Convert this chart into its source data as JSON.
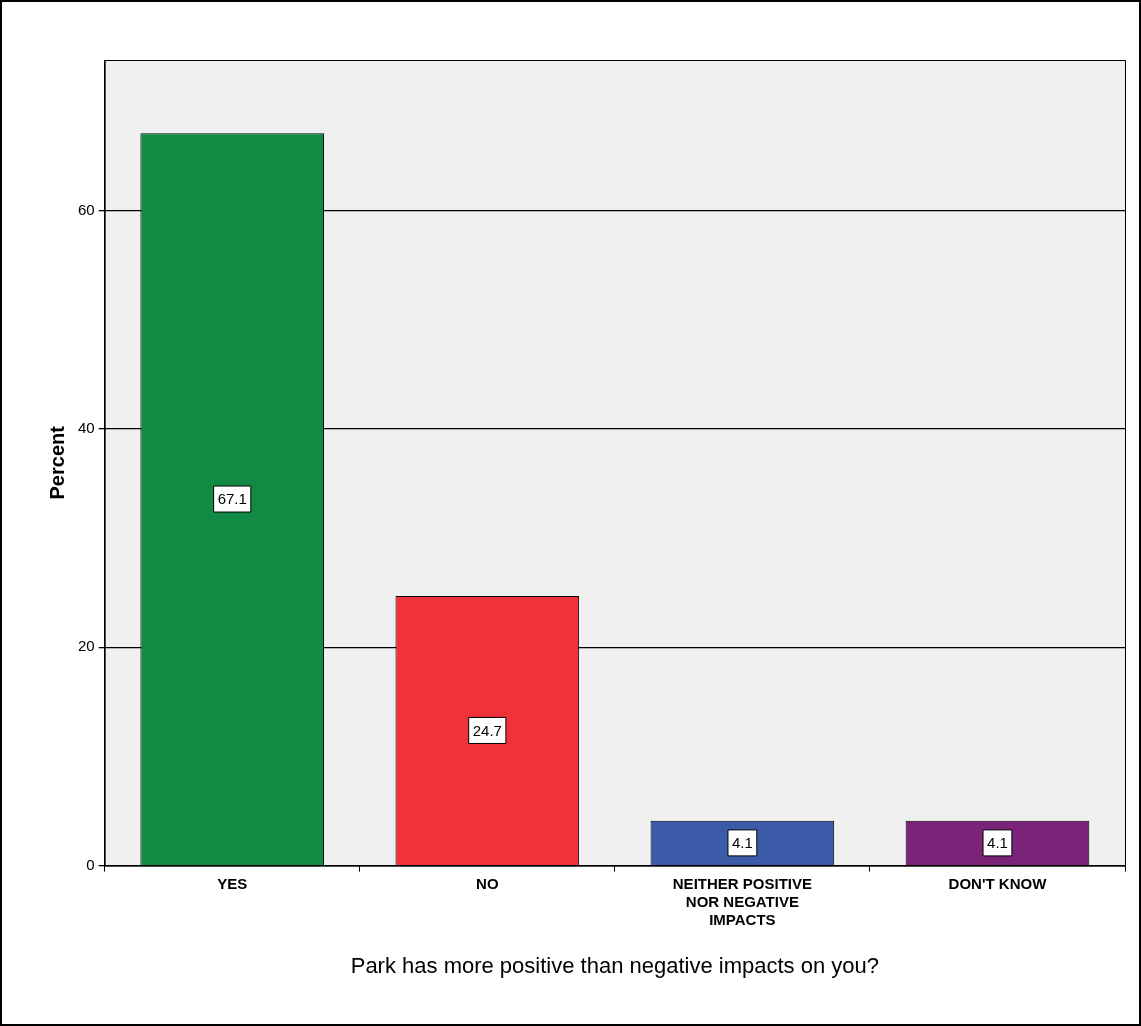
{
  "chart_data": {
    "type": "bar",
    "xlabel": "Park has more positive than negative impacts on you?",
    "ylabel": "Percent",
    "categories": [
      "YES",
      "NO",
      "NEITHER POSITIVE NOR NEGATIVE IMPACTS",
      "DON'T KNOW"
    ],
    "values": [
      67.1,
      24.7,
      4.1,
      4.1
    ],
    "colors": [
      "#118a44",
      "#f0323a",
      "#3b5aa8",
      "#7a2378"
    ],
    "ylim": [
      0,
      73.8
    ],
    "yticks": [
      0,
      20,
      40,
      60
    ],
    "grid": "y",
    "data_labels": true
  }
}
